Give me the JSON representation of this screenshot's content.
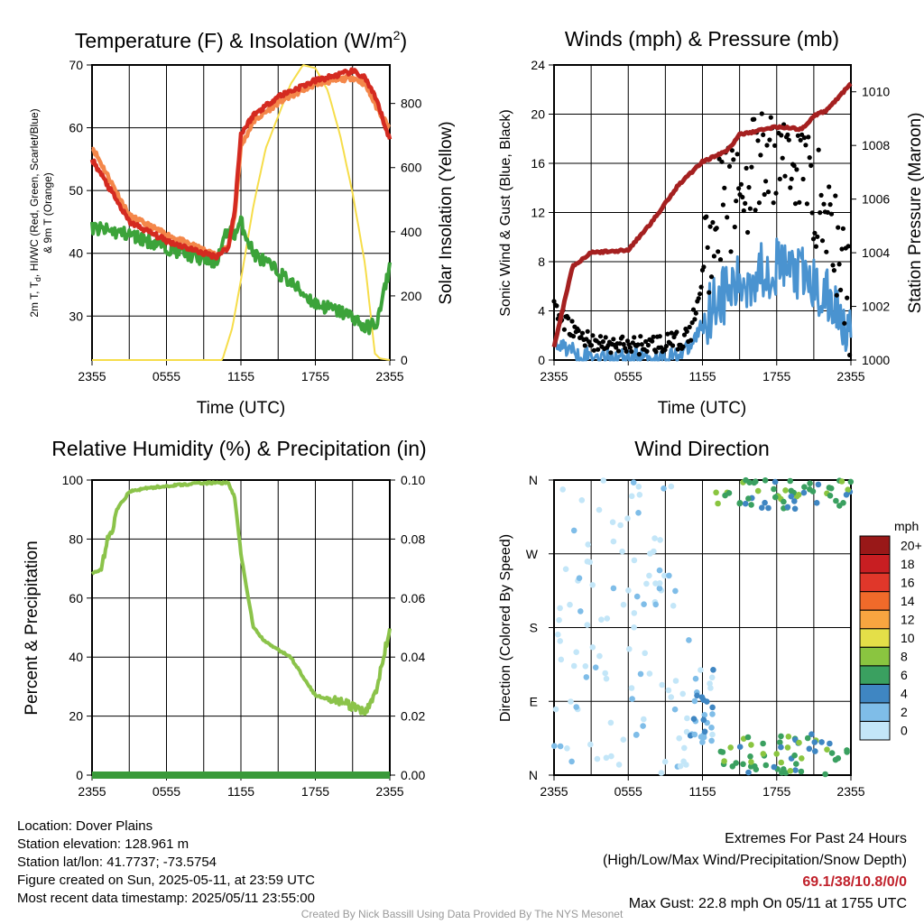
{
  "charts": {
    "temp": {
      "title_main": "Temperature (F) & Insolation (W/m",
      "title_sup": "2",
      "title_end": ")",
      "ylabel_line1_a": "2m T, T",
      "ylabel_line1_sub": "d",
      "ylabel_line1_b": ", HI/WC (Red, Green, Scarlet/Blue)",
      "ylabel_line2": "& 9m T (Orange)",
      "y2label": "Solar Insolation (Yellow)",
      "xlabel": "Time (UTC)"
    },
    "wind": {
      "title": "Winds (mph) & Pressure (mb)",
      "ylabel": "Sonic Wind & Gust (Blue, Black)",
      "y2label": "Station Pressure (Maroon)",
      "xlabel": "Time (UTC)"
    },
    "rh": {
      "title": "Relative Humidity (%) & Precipitation (in)",
      "ylabel": "Percent & Precipitation"
    },
    "dir": {
      "title": "Wind Direction",
      "ylabel": "Direction (Colored By Speed)",
      "legend_title": "mph"
    }
  },
  "chart_data": [
    {
      "type": "line",
      "title": "Temperature (F) & Insolation (W/m2)",
      "xlabel": "Time (UTC)",
      "ylabel": "2m T, Td, HI/WC (Red, Green, Scarlet/Blue) & 9m T (Orange)",
      "y2label": "Solar Insolation (Yellow)",
      "x_ticks": [
        "2355",
        "0555",
        "1155",
        "1755",
        "2355"
      ],
      "x_hours": [
        0,
        3,
        6,
        9,
        10,
        11,
        11.5,
        12,
        13,
        15,
        18,
        21,
        22,
        23,
        24
      ],
      "ylim": [
        23,
        70
      ],
      "y_ticks": [
        30,
        40,
        50,
        60,
        70
      ],
      "y2lim": [
        0,
        920
      ],
      "y2_ticks": [
        0,
        200,
        400,
        600,
        800
      ],
      "grid": true,
      "series": [
        {
          "name": "2m T",
          "color": "#d42a20",
          "values": [
            55,
            45,
            42,
            40,
            39.5,
            41,
            47,
            59,
            62,
            65,
            67.5,
            69,
            68,
            64,
            58
          ]
        },
        {
          "name": "9m T",
          "color": "#f4874a",
          "values": [
            57,
            46,
            43,
            40.5,
            39.7,
            41,
            46,
            57,
            61,
            64,
            67,
            68,
            67,
            63,
            60
          ]
        },
        {
          "name": "Td",
          "color": "#3ca33a",
          "values": [
            44,
            43,
            41,
            39,
            38.7,
            44,
            43,
            45,
            40,
            37,
            32,
            30,
            28,
            29,
            38
          ]
        }
      ],
      "insolation": {
        "name": "Solar Insolation",
        "color": "#f6dd4a",
        "x_hours": [
          0,
          10.5,
          11.3,
          12,
          13,
          14,
          16,
          17,
          18,
          19,
          20,
          21,
          22,
          22.8,
          23.2,
          24
        ],
        "values": [
          0,
          0,
          100,
          250,
          480,
          660,
          860,
          920,
          910,
          840,
          700,
          520,
          300,
          20,
          5,
          0
        ]
      }
    },
    {
      "type": "scatter",
      "title": "Winds (mph) & Pressure (mb)",
      "xlabel": "Time (UTC)",
      "ylabel": "Sonic Wind & Gust (Blue, Black)",
      "y2label": "Station Pressure (Maroon)",
      "x_ticks": [
        "2355",
        "0555",
        "1155",
        "1755",
        "2355"
      ],
      "ylim": [
        0,
        24
      ],
      "y_ticks": [
        0,
        4,
        8,
        12,
        16,
        20,
        24
      ],
      "y2lim": [
        1000,
        1011
      ],
      "y2_ticks": [
        1000,
        1002,
        1004,
        1006,
        1008,
        1010
      ],
      "grid": true,
      "gust_max": 22.8,
      "wind_speed": {
        "name": "Sonic Wind",
        "color": "#4a93d0",
        "x_hours": [
          0,
          2,
          4,
          6,
          8,
          10,
          11,
          12,
          13,
          15,
          17,
          19,
          21,
          23,
          24
        ],
        "values": [
          1.5,
          0.5,
          0.2,
          0.3,
          0.3,
          0.4,
          1,
          3,
          5,
          6,
          7.5,
          7.5,
          6,
          4,
          2.5
        ]
      },
      "gust": {
        "name": "Gust",
        "color": "#000000",
        "x_hours": [
          0,
          2,
          4,
          6,
          8,
          10,
          11,
          12,
          13,
          15,
          17,
          19,
          21,
          23,
          24
        ],
        "values": [
          4,
          2,
          1.2,
          1.2,
          1.3,
          1.5,
          2,
          7,
          12,
          14,
          16,
          17,
          14,
          9,
          4
        ]
      },
      "pressure": {
        "name": "Station Pressure",
        "color": "#a52020",
        "x_hours": [
          0,
          1.5,
          3,
          6,
          8,
          10,
          12,
          14,
          15,
          16,
          17,
          18,
          20,
          21,
          22,
          24
        ],
        "values": [
          1000.5,
          1003.5,
          1004,
          1004.1,
          1005.2,
          1006.5,
          1007.4,
          1007.8,
          1008.4,
          1008.5,
          1008.6,
          1008.7,
          1008.6,
          1009.1,
          1009.3,
          1010.3
        ]
      }
    },
    {
      "type": "line",
      "title": "Relative Humidity (%) & Precipitation (in)",
      "ylabel": "Percent & Precipitation",
      "x_ticks": [
        "2355",
        "0555",
        "1155",
        "1755",
        "2355"
      ],
      "ylim": [
        0,
        100
      ],
      "y_ticks": [
        0,
        20,
        40,
        60,
        80,
        100
      ],
      "y2lim": [
        0,
        0.1
      ],
      "y2_ticks": [
        "0.00",
        "0.02",
        "0.04",
        "0.06",
        "0.08",
        "0.10"
      ],
      "grid": true,
      "series": [
        {
          "name": "Relative Humidity",
          "color": "#8bc34a",
          "x_hours": [
            0,
            0.8,
            1.2,
            1.5,
            2,
            3,
            4,
            6,
            9,
            11,
            11.5,
            12,
            13,
            14,
            16,
            18,
            20,
            21,
            22,
            23,
            24
          ],
          "values": [
            68,
            70,
            80,
            81,
            90,
            96,
            97,
            98,
            99,
            99,
            94,
            75,
            50,
            45,
            40,
            27,
            25,
            23,
            21,
            30,
            50
          ]
        },
        {
          "name": "Precipitation",
          "color": "#3a9a3a",
          "x_hours": [
            0,
            24
          ],
          "values": [
            0,
            0
          ]
        }
      ]
    },
    {
      "type": "scatter",
      "title": "Wind Direction",
      "ylabel": "Direction (Colored By Speed)",
      "x_ticks": [
        "2355",
        "0555",
        "1155",
        "1755",
        "2355"
      ],
      "y_ticks": [
        "N",
        "E",
        "S",
        "W",
        "N"
      ],
      "y_degrees": [
        0,
        90,
        180,
        270,
        360
      ],
      "grid": true,
      "colorbar": {
        "title": "mph",
        "labels": [
          "0",
          "2",
          "4",
          "6",
          "8",
          "10",
          "12",
          "14",
          "16",
          "18",
          "20+"
        ],
        "colors": [
          "#c3e6f8",
          "#7fbde8",
          "#3f86c2",
          "#3aa060",
          "#8ac540",
          "#e4df48",
          "#f8a540",
          "#f06a2a",
          "#e0372a",
          "#c81e22",
          "#991818"
        ]
      },
      "clusters": [
        {
          "hours": [
            0,
            11
          ],
          "directions": [
            0,
            360
          ],
          "speed": 1,
          "count": 110
        },
        {
          "hours": [
            11,
            13
          ],
          "directions": [
            40,
            130
          ],
          "speed": 3,
          "count": 30
        },
        {
          "hours": [
            13,
            24
          ],
          "directions": [
            0,
            50
          ],
          "speed": 7,
          "count": 60
        },
        {
          "hours": [
            13,
            24
          ],
          "directions": [
            325,
            360
          ],
          "speed": 7,
          "count": 60
        }
      ]
    }
  ],
  "footer": {
    "location": "Location: Dover Plains",
    "elevation": "Station elevation: 128.961 m",
    "latlon": "Station lat/lon: 41.7737; -73.5754",
    "created": "Figure created on Sun, 2025-05-11, at 23:59 UTC",
    "recent": "Most recent data timestamp: 2025/05/11 23:55:00",
    "extremes_title": "Extremes For Past 24 Hours",
    "extremes_legend": "(High/Low/Max Wind/Precipitation/Snow Depth)",
    "extremes_values": "69.1/38/10.8/0/0",
    "max_gust": "Max Gust: 22.8 mph On 05/11 at 1755 UTC",
    "credit": "Created By Nick Bassill Using Data Provided By The NYS Mesonet"
  }
}
